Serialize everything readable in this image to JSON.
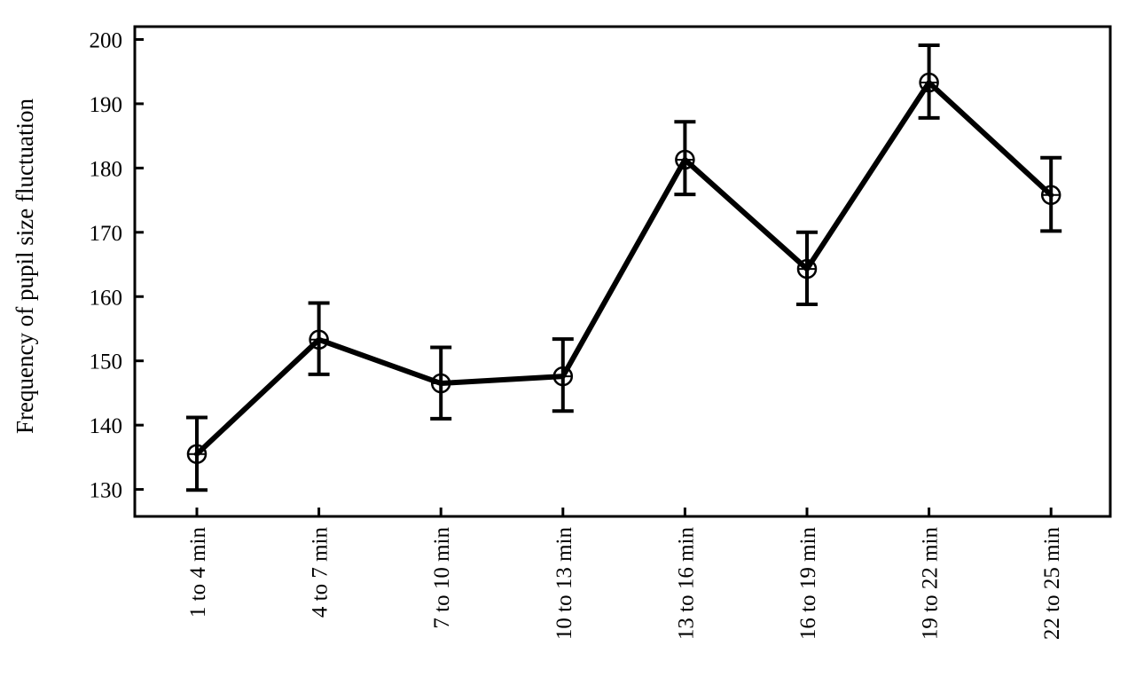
{
  "chart_data": {
    "type": "line",
    "title": "",
    "xlabel": "",
    "ylabel": "Frequency of pupil size fluctuation",
    "categories": [
      "1 to 4 min",
      "4 to 7 min",
      "7 to 10 min",
      "10 to 13 min",
      "13 to 16 min",
      "16 to 19 min",
      "19 to 22 min",
      "22 to 25 min"
    ],
    "series": [
      {
        "values": [
          135.5,
          153.3,
          146.5,
          147.6,
          181.3,
          164.3,
          193.3,
          175.8
        ],
        "error_lower": [
          129.9,
          147.9,
          141.0,
          142.2,
          175.9,
          158.8,
          187.8,
          170.2
        ],
        "error_upper": [
          141.2,
          159.0,
          152.1,
          153.4,
          187.2,
          170.0,
          199.1,
          181.6
        ]
      }
    ],
    "yticks": [
      130,
      140,
      150,
      160,
      170,
      180,
      190,
      200
    ],
    "ylim": [
      125.8,
      202
    ],
    "grid": false,
    "line_color": "#000000",
    "marker": "open-circle-with-cross"
  }
}
